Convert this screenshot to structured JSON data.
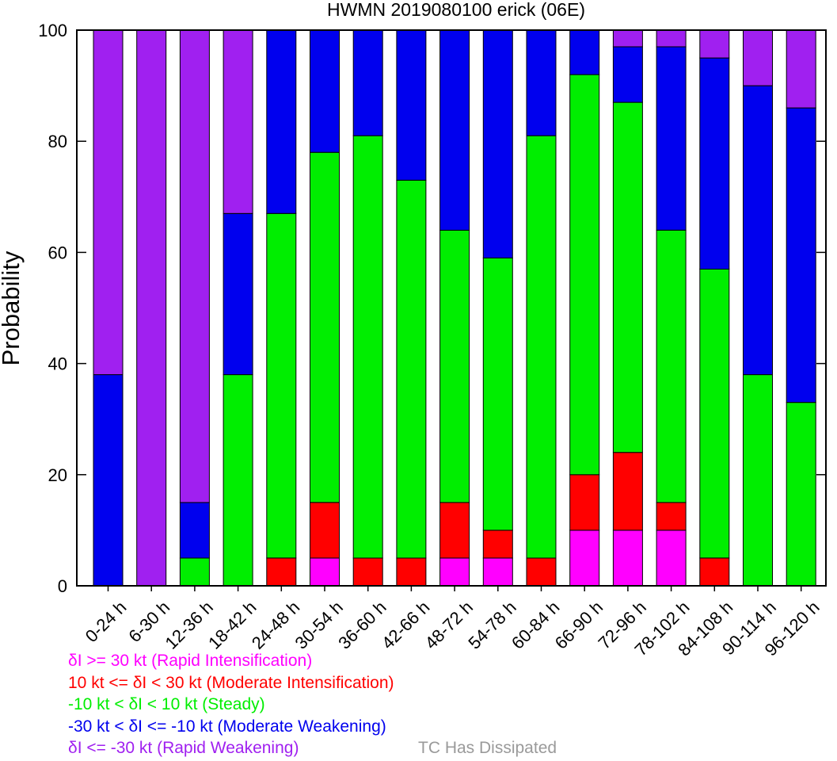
{
  "chart_data": {
    "type": "bar",
    "stacked": true,
    "title": "HWMN 2019080100 erick (06E)",
    "xlabel": "",
    "ylabel": "Probability",
    "ylim": [
      0,
      100
    ],
    "yticks": [
      0,
      20,
      40,
      60,
      80,
      100
    ],
    "categories": [
      "0-24 h",
      "6-30 h",
      "12-36 h",
      "18-42 h",
      "24-48 h",
      "30-54 h",
      "36-60 h",
      "42-66 h",
      "48-72 h",
      "54-78 h",
      "60-84 h",
      "66-90 h",
      "72-96 h",
      "78-102 h",
      "84-108 h",
      "90-114 h",
      "96-120 h"
    ],
    "series": [
      {
        "key": "ri",
        "color": "#ff00ff",
        "values": [
          0,
          0,
          0,
          0,
          0,
          5,
          0,
          0,
          5,
          5,
          0,
          10,
          10,
          10,
          0,
          0,
          0
        ]
      },
      {
        "key": "mi",
        "color": "#ff0000",
        "values": [
          0,
          0,
          0,
          0,
          5,
          10,
          5,
          5,
          10,
          5,
          5,
          10,
          14,
          5,
          5,
          0,
          0
        ]
      },
      {
        "key": "steady",
        "color": "#00ee00",
        "values": [
          0,
          0,
          5,
          38,
          62,
          63,
          76,
          68,
          49,
          49,
          76,
          72,
          63,
          49,
          52,
          38,
          33
        ]
      },
      {
        "key": "mw",
        "color": "#0000ee",
        "values": [
          38,
          0,
          10,
          29,
          33,
          22,
          19,
          27,
          36,
          41,
          19,
          8,
          10,
          33,
          38,
          52,
          53
        ]
      },
      {
        "key": "rw",
        "color": "#a020f0",
        "values": [
          62,
          100,
          85,
          33,
          0,
          0,
          0,
          0,
          0,
          0,
          0,
          0,
          3,
          3,
          5,
          10,
          14
        ]
      }
    ],
    "grid": false
  },
  "legend": {
    "items": [
      {
        "text": "δI >= 30 kt (Rapid Intensification)",
        "color": "#ff00ff"
      },
      {
        "text": "10 kt <= δI < 30 kt (Moderate Intensification)",
        "color": "#ff0000"
      },
      {
        "text": "-10 kt < δI < 10 kt (Steady)",
        "color": "#00ee00"
      },
      {
        "text": "-30 kt < δI <= -10 kt (Moderate Weakening)",
        "color": "#0000ee"
      },
      {
        "text": "δI <= -30 kt (Rapid Weakening)",
        "color": "#a020f0"
      }
    ],
    "dissipated_text": "TC Has Dissipated",
    "dissipated_color": "#9a9a9a"
  }
}
